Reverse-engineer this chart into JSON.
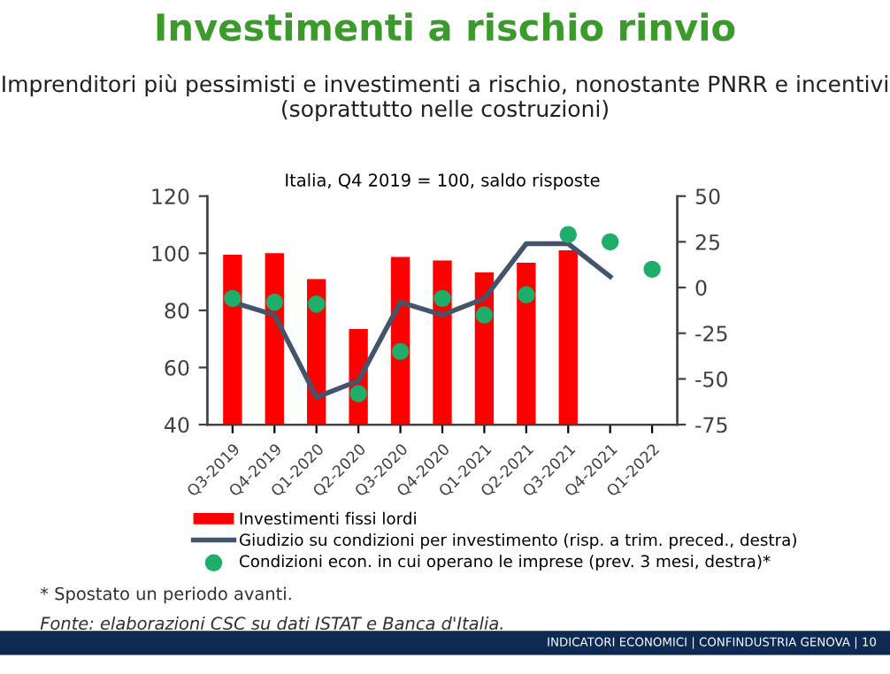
{
  "chart_data": {
    "type": "bar",
    "title": "Investimenti a rischio rinvio",
    "subtitle": "Imprenditori più pessimisti e investimenti a rischio, nonostante PNRR e incentivi (soprattutto nelle costruzioni)",
    "xlabel": "Italia, Q4 2019 = 100, saldo risposte",
    "categories": [
      "Q3-2019",
      "Q4-2019",
      "Q1-2020",
      "Q2-2020",
      "Q3-2020",
      "Q4-2020",
      "Q1-2021",
      "Q2-2021",
      "Q3-2021",
      "Q4-2021",
      "Q1-2022"
    ],
    "series": [
      {
        "name": "Investimenti fissi lordi",
        "color": "#ff0000",
        "values": [
          99.5,
          100,
          91,
          73.5,
          98.7,
          97.5,
          93.3,
          96.7,
          101,
          null,
          null
        ]
      },
      {
        "name": "Giudizio su condizioni per investimento (risp. a trim. preced., destra)",
        "type": "line",
        "axis": "y2",
        "color": "#44546a",
        "marker": "none",
        "values": [
          -8,
          -15,
          -60,
          -51,
          -8,
          -15,
          -6,
          24,
          24,
          6,
          null
        ]
      },
      {
        "name": "Condizioni econ. in cui operano le imprese (prev. 3 mesi, destra)*",
        "type": "scatter",
        "axis": "y2",
        "color": "#1fae6a",
        "marker": "circle",
        "values": [
          -6,
          -8,
          -9,
          -58,
          -35,
          -6,
          -15,
          -4,
          29,
          25,
          10
        ]
      }
    ],
    "ylim": [
      40,
      120
    ],
    "yticks": [
      40,
      60,
      80,
      100,
      120
    ],
    "y2lim": [
      -75,
      50
    ],
    "y2ticks": [
      -75,
      -50,
      -25,
      0,
      25,
      50
    ],
    "grid": false,
    "legend": "bottom",
    "annotations": [
      "* Spostato un periodo avanti.",
      "Fonte: elaborazioni CSC su dati ISTAT e Banca d'Italia.",
      "INDICATORI ECONOMICI | CONFINDUSTRIA GENOVA | 10"
    ]
  }
}
